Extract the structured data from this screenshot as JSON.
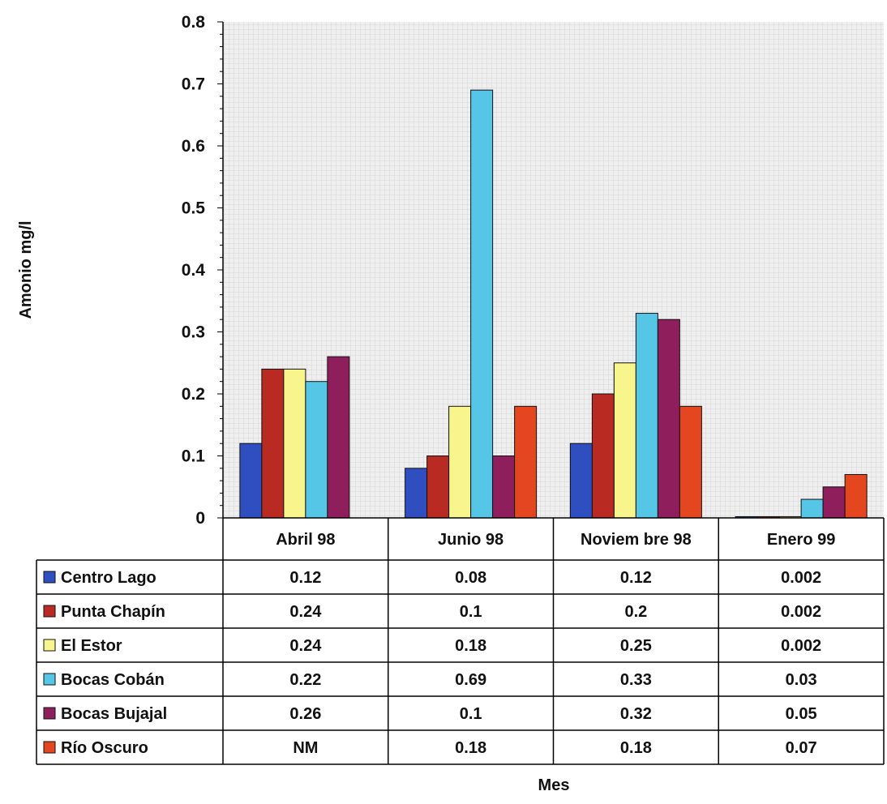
{
  "chart_data": {
    "type": "bar",
    "title": "",
    "xlabel": "Mes",
    "ylabel": "Amonio mg/l",
    "ylim": [
      0,
      0.8
    ],
    "yticks": [
      "0",
      "0.1",
      "0.2",
      "0.3",
      "0.4",
      "0.5",
      "0.6",
      "0.7",
      "0.8"
    ],
    "grid": true,
    "legend": "data-table",
    "categories": [
      "Abril 98",
      "Junio 98",
      "Noviem bre 98",
      "Enero 99"
    ],
    "series": [
      {
        "name": "Centro Lago",
        "color": "#2f4fc0",
        "values": [
          0.12,
          0.08,
          0.12,
          0.002
        ],
        "labels": [
          "0.12",
          "0.08",
          "0.12",
          "0.002"
        ]
      },
      {
        "name": "Punta Chapín",
        "color": "#b82a22",
        "values": [
          0.24,
          0.1,
          0.2,
          0.002
        ],
        "labels": [
          "0.24",
          "0.1",
          "0.2",
          "0.002"
        ]
      },
      {
        "name": "El Estor",
        "color": "#f7f58c",
        "values": [
          0.24,
          0.18,
          0.25,
          0.002
        ],
        "labels": [
          "0.24",
          "0.18",
          "0.25",
          "0.002"
        ]
      },
      {
        "name": "Bocas Cobán",
        "color": "#56c6e6",
        "values": [
          0.22,
          0.69,
          0.33,
          0.03
        ],
        "labels": [
          "0.22",
          "0.69",
          "0.33",
          "0.03"
        ]
      },
      {
        "name": "Bocas Bujajal",
        "color": "#8e1f5c",
        "values": [
          0.26,
          0.1,
          0.32,
          0.05
        ],
        "labels": [
          "0.26",
          "0.1",
          "0.32",
          "0.05"
        ]
      },
      {
        "name": "Río Oscuro",
        "color": "#e4461f",
        "values": [
          null,
          0.18,
          0.18,
          0.07
        ],
        "labels": [
          "NM",
          "0.18",
          "0.18",
          "0.07"
        ]
      }
    ]
  }
}
